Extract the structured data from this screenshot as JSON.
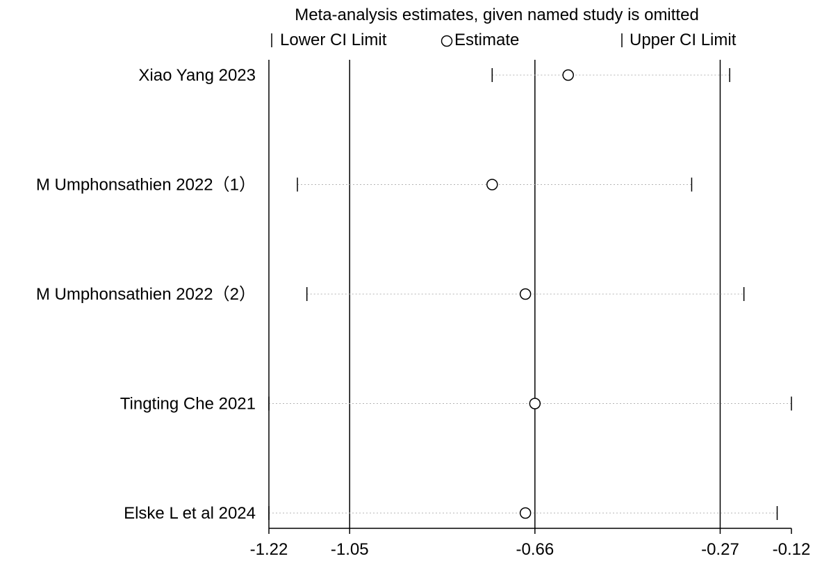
{
  "chart_data": {
    "type": "scatter",
    "title": "Meta-analysis estimates, given named study is omitted",
    "legend": {
      "placement": "top",
      "items": [
        {
          "marker": "lower-tick",
          "label": "Lower CI Limit"
        },
        {
          "marker": "circle",
          "label": "Estimate"
        },
        {
          "marker": "upper-tick",
          "label": "Upper CI Limit"
        }
      ]
    },
    "xlim": [
      -1.22,
      -0.12
    ],
    "x_ticks": [
      -1.22,
      -1.05,
      -0.66,
      -0.27,
      -0.12
    ],
    "x_tick_labels": [
      "-1.22",
      "-1.05",
      "-0.66",
      "-0.27",
      "-0.12"
    ],
    "reference_lines": [
      -1.22,
      -1.05,
      -0.66,
      -0.27
    ],
    "studies": [
      {
        "name": "Xiao Yang  2023",
        "lower": -0.75,
        "estimate": -0.59,
        "upper": -0.25
      },
      {
        "name": "M Umphonsathien 2022（1）",
        "lower": -1.16,
        "estimate": -0.75,
        "upper": -0.33
      },
      {
        "name": "M Umphonsathien 2022（2）",
        "lower": -1.14,
        "estimate": -0.68,
        "upper": -0.22
      },
      {
        "name": "Tingting Che  2021",
        "lower": -1.22,
        "estimate": -0.66,
        "upper": -0.12
      },
      {
        "name": "Elske L et al 2024",
        "lower": -1.22,
        "estimate": -0.68,
        "upper": -0.15
      }
    ]
  }
}
